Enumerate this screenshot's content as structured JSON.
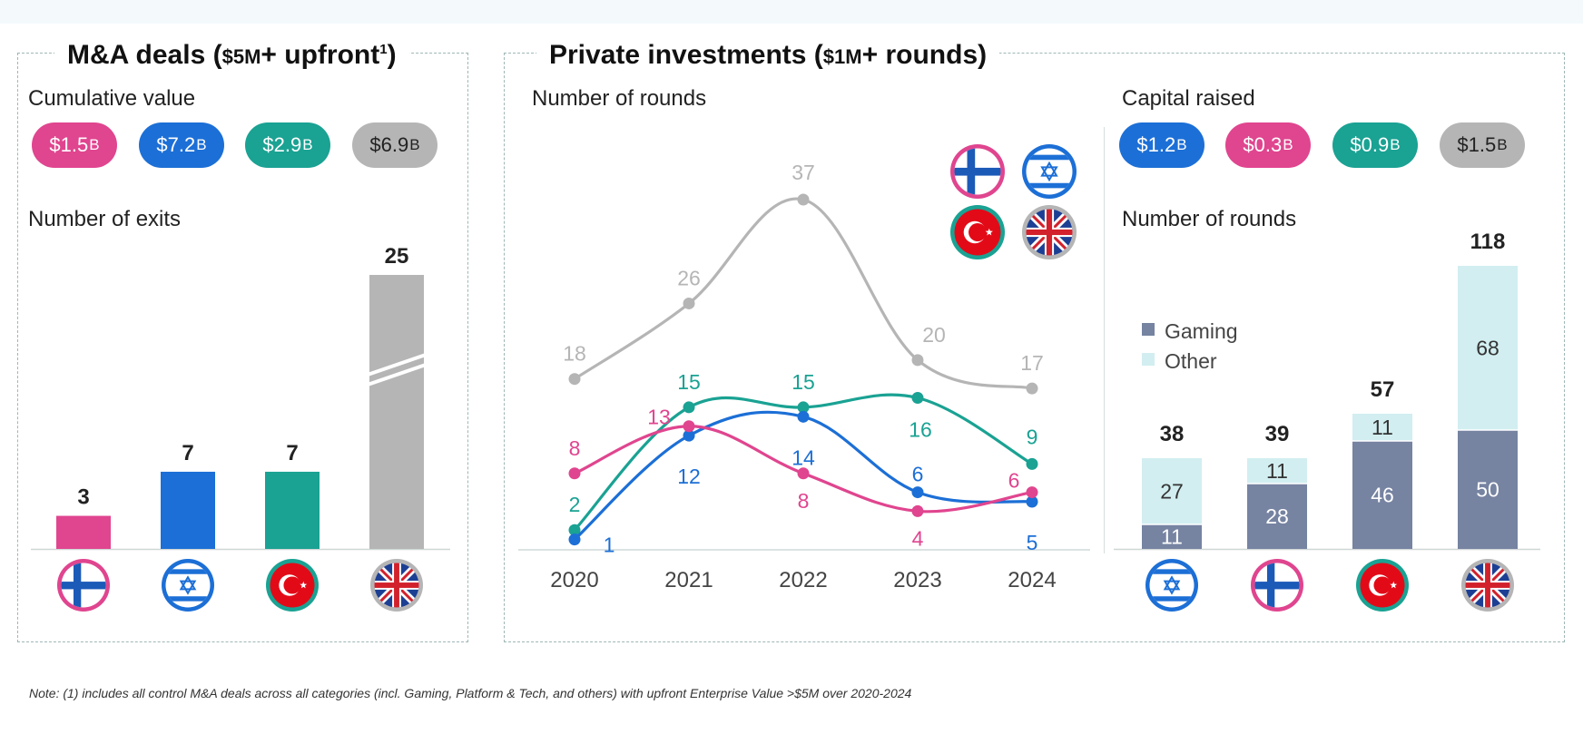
{
  "colors": {
    "finland": "#e0458f",
    "israel": "#1c6fd6",
    "turkey": "#1aa293",
    "uk": "#b5b5b5",
    "gaming": "#7683a1",
    "other": "#d2eef0"
  },
  "ma": {
    "title_main": "M&A deals (",
    "title_dollar": "$5",
    "title_m": "M",
    "title_rest": "+ upfront",
    "title_sup": "1",
    "title_close": ")",
    "cumulative_label": "Cumulative value",
    "exits_label": "Number of exits",
    "pills": [
      {
        "amount": "$1.5",
        "unit": "B",
        "color": "#e0458f"
      },
      {
        "amount": "$7.2",
        "unit": "B",
        "color": "#1c6fd6"
      },
      {
        "amount": "$2.9",
        "unit": "B",
        "color": "#1aa293"
      },
      {
        "amount": "$6.9",
        "unit": "B",
        "color": "#b5b5b5"
      }
    ]
  },
  "pi": {
    "title_main": "Private investments (",
    "title_dollar": "$1",
    "title_m": "M",
    "title_rest": "+ rounds)",
    "rounds_label": "Number of rounds",
    "capital_label": "Capital raised",
    "rounds_label_right": "Number of rounds",
    "pills": [
      {
        "amount": "$1.2",
        "unit": "B",
        "color": "#1c6fd6"
      },
      {
        "amount": "$0.3",
        "unit": "B",
        "color": "#e0458f"
      },
      {
        "amount": "$0.9",
        "unit": "B",
        "color": "#1aa293"
      },
      {
        "amount": "$1.5",
        "unit": "B",
        "color": "#b5b5b5"
      }
    ]
  },
  "note": "Note: (1) includes all control M&A deals across all categories (incl. Gaming, Platform & Tech, and others) with upfront Enterprise Value >$5M over 2020-2024",
  "chart_data": [
    {
      "type": "bar",
      "title": "Number of exits",
      "categories": [
        "Finland",
        "Israel",
        "Turkey",
        "UK"
      ],
      "values": [
        3,
        7,
        7,
        25
      ],
      "axis_break": "UK bar",
      "colors": [
        "#e0458f",
        "#1c6fd6",
        "#1aa293",
        "#b5b5b5"
      ]
    },
    {
      "type": "line",
      "title": "Number of rounds",
      "x": [
        "2020",
        "2021",
        "2022",
        "2023",
        "2024"
      ],
      "series": [
        {
          "country": "UK",
          "color": "#b5b5b5",
          "values": [
            18,
            26,
            37,
            20,
            17
          ]
        },
        {
          "country": "Turkey",
          "color": "#1aa293",
          "values": [
            2,
            15,
            15,
            16,
            9
          ]
        },
        {
          "country": "Israel",
          "color": "#1c6fd6",
          "values": [
            1,
            12,
            14,
            6,
            5
          ]
        },
        {
          "country": "Finland",
          "color": "#e0458f",
          "values": [
            8,
            13,
            8,
            4,
            6
          ]
        }
      ],
      "legend": "top-right (flags)"
    },
    {
      "type": "bar",
      "stacked": true,
      "title": "Number of rounds",
      "categories": [
        "Israel",
        "Finland",
        "Turkey",
        "UK"
      ],
      "series": [
        {
          "name": "Gaming",
          "color": "#7683a1",
          "values": [
            11,
            28,
            46,
            50
          ]
        },
        {
          "name": "Other",
          "color": "#d2eef0",
          "values": [
            27,
            11,
            11,
            68
          ]
        }
      ],
      "totals": [
        38,
        39,
        57,
        118
      ],
      "legend": "left"
    }
  ]
}
